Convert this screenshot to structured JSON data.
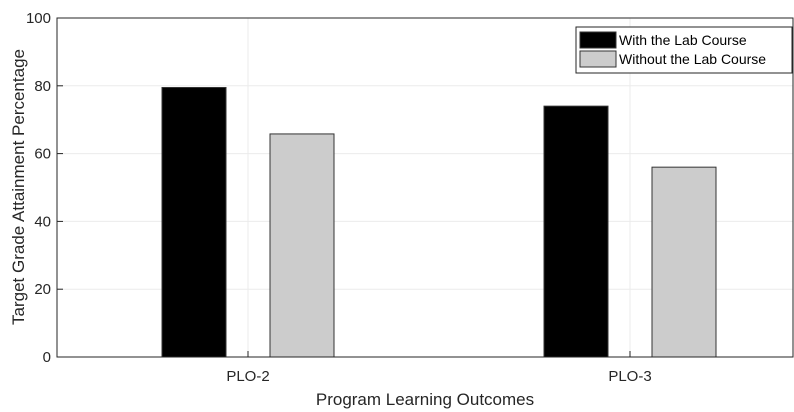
{
  "chart_data": {
    "type": "bar",
    "title": "",
    "xlabel": "Program Learning Outcomes",
    "ylabel": "Target Grade Attainment Percentage",
    "categories": [
      "PLO-2",
      "PLO-3"
    ],
    "series": [
      {
        "name": "With the Lab Course",
        "values": [
          79.5,
          74
        ],
        "color": "#000000"
      },
      {
        "name": "Without the Lab Course",
        "values": [
          65.8,
          56
        ],
        "color": "#cccccc"
      }
    ],
    "ylim": [
      0,
      100
    ],
    "yticks": [
      0,
      20,
      40,
      60,
      80,
      100
    ],
    "grid": true,
    "legend_position": "top-right"
  }
}
